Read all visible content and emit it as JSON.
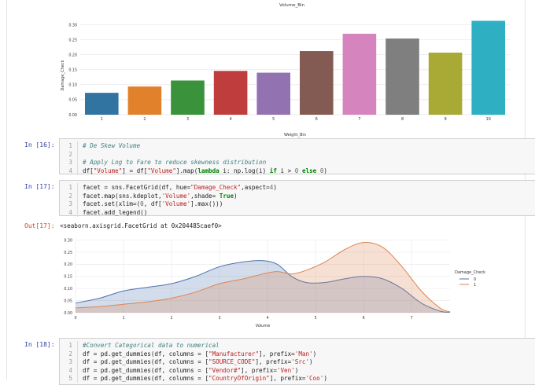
{
  "top_chart": {
    "title": "Volume_Bin",
    "ylabel": "Damage_Check",
    "xlabel": "Weight_Bin",
    "y_ticks": [
      "0.00",
      "0.05",
      "0.10",
      "0.15",
      "0.20",
      "0.25",
      "0.30"
    ]
  },
  "cells": {
    "c16": {
      "prompt": "In [16]:",
      "lines": [
        {
          "n": "1",
          "t": "# De Skew Volume"
        },
        {
          "n": "2",
          "t": ""
        },
        {
          "n": "3",
          "t": "# Apply Log to Fare to reduce skewness distribution"
        },
        {
          "n": "4",
          "t": "df[\"Volume\"] = df[\"Volume\"].map(lambda i: np.log(i) if i > 0 else 0)"
        }
      ]
    },
    "c17": {
      "prompt": "In [17]:",
      "lines": [
        {
          "n": "1",
          "t": "facet = sns.FacetGrid(df, hue=\"Damage_Check\",aspect=4)"
        },
        {
          "n": "2",
          "t": "facet.map(sns.kdeplot,'Volume',shade= True)"
        },
        {
          "n": "3",
          "t": "facet.set(xlim=(0, df['Volume'].max()))"
        },
        {
          "n": "4",
          "t": "facet.add_legend()"
        }
      ],
      "out_prompt": "Out[17]:",
      "out_text": "<seaborn.axisgrid.FacetGrid at 0x204485caef0>"
    },
    "c18": {
      "prompt": "In [18]:",
      "lines": [
        {
          "n": "1",
          "t": "#Convert Categorical data to numerical"
        },
        {
          "n": "2",
          "t": "df = pd.get_dummies(df, columns = [\"Manufacturer\"], prefix='Man')"
        },
        {
          "n": "3",
          "t": "df = pd.get_dummies(df, columns = [\"SOURCE_CODE\"], prefix='Src')"
        },
        {
          "n": "4",
          "t": "df = pd.get_dummies(df, columns = [\"Vendor#\"], prefix='Ven')"
        },
        {
          "n": "5",
          "t": "df = pd.get_dummies(df, columns = [\"CountryOfOrigin\"], prefix='Coo')"
        }
      ]
    }
  },
  "chart_data": [
    {
      "type": "bar",
      "title": "Volume_Bin",
      "xlabel": "Weight_Bin",
      "ylabel": "Damage_Check",
      "categories": [
        "1",
        "2",
        "3",
        "4",
        "5",
        "6",
        "7",
        "8",
        "9",
        "10"
      ],
      "values": [
        0.073,
        0.094,
        0.114,
        0.146,
        0.14,
        0.212,
        0.27,
        0.254,
        0.207,
        0.313
      ],
      "colors": [
        "#3274a1",
        "#e1812c",
        "#3a923a",
        "#c03d3e",
        "#9372b2",
        "#845b53",
        "#d684bd",
        "#7f7f7f",
        "#a9aa35",
        "#2eb0c2"
      ],
      "ylim": [
        0,
        0.33
      ],
      "grid": true
    },
    {
      "type": "area",
      "xlabel": "Volume",
      "legend_title": "Damage_Check",
      "legend_position": "right",
      "xlim": [
        0,
        7.8
      ],
      "ylim": [
        0,
        0.305
      ],
      "x_ticks": [
        "0",
        "1",
        "2",
        "3",
        "4",
        "5",
        "6",
        "7"
      ],
      "y_ticks": [
        "0.00",
        "0.05",
        "0.10",
        "0.15",
        "0.20",
        "0.25",
        "0.30"
      ],
      "x": [
        0,
        0.5,
        1,
        1.5,
        2,
        2.5,
        3,
        3.5,
        3.9,
        4.2,
        4.5,
        4.8,
        5.2,
        5.6,
        6,
        6.4,
        6.8,
        7.2,
        7.6,
        7.8
      ],
      "series": [
        {
          "name": "0",
          "color": "#4c72b0",
          "values": [
            0.04,
            0.06,
            0.09,
            0.105,
            0.12,
            0.15,
            0.19,
            0.21,
            0.215,
            0.2,
            0.15,
            0.125,
            0.125,
            0.14,
            0.15,
            0.14,
            0.1,
            0.04,
            0.006,
            0.002
          ]
        },
        {
          "name": "1",
          "color": "#dd8452",
          "values": [
            0.02,
            0.025,
            0.035,
            0.045,
            0.06,
            0.085,
            0.12,
            0.14,
            0.16,
            0.17,
            0.16,
            0.175,
            0.21,
            0.26,
            0.29,
            0.27,
            0.19,
            0.09,
            0.018,
            0.004
          ]
        }
      ]
    }
  ]
}
